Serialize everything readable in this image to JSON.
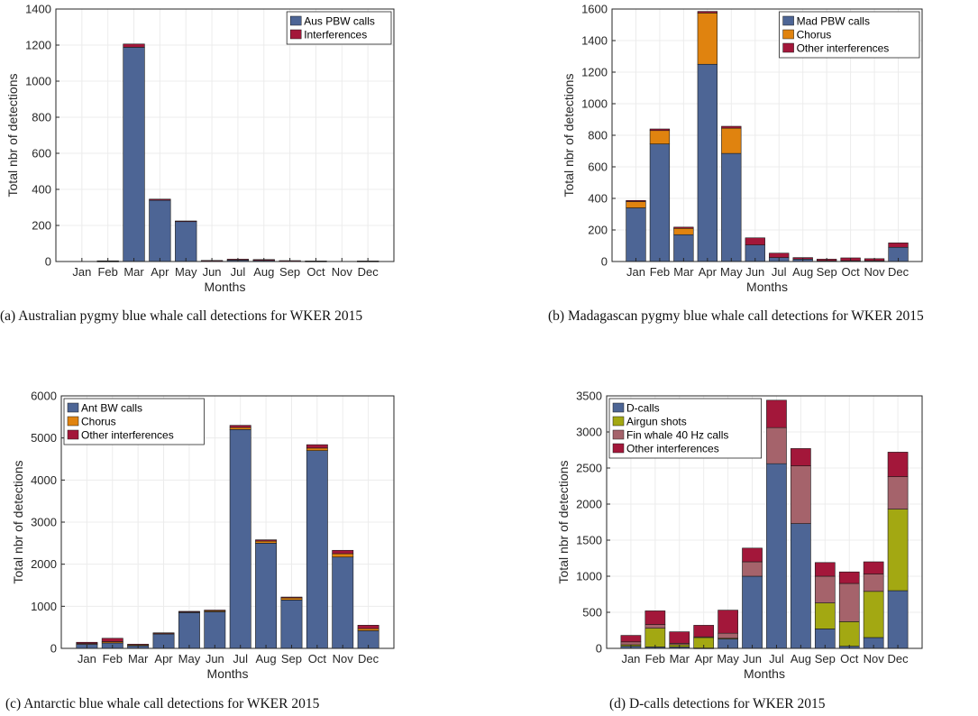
{
  "colors": {
    "blue": "#4d6595",
    "orange": "#e0830f",
    "red": "#a3173a",
    "olive": "#a3a812",
    "rose": "#a5636b"
  },
  "chart_data": [
    {
      "type": "bar",
      "stacked": true,
      "caption": "(a) Australian pygmy blue whale call detections for WKER 2015",
      "xlabel": "Months",
      "ylabel": "Total nbr of detections",
      "categories": [
        "Jan",
        "Feb",
        "Mar",
        "Apr",
        "May",
        "Jun",
        "Jul",
        "Aug",
        "Sep",
        "Oct",
        "Nov",
        "Dec"
      ],
      "ylim": [
        0,
        1400
      ],
      "yticks": [
        0,
        200,
        400,
        600,
        800,
        1000,
        1200,
        1400
      ],
      "ytick_labels": [
        "0",
        "200",
        "400",
        "600",
        "800",
        "1000",
        "1200",
        "1400"
      ],
      "grid": true,
      "legend_position": "top-right",
      "series": [
        {
          "name": "Aus PBW calls",
          "color": "#4d6595",
          "values": [
            0,
            2,
            1188,
            340,
            223,
            3,
            8,
            6,
            3,
            2,
            0,
            2
          ]
        },
        {
          "name": "Interferences",
          "color": "#a3173a",
          "values": [
            0,
            2,
            18,
            6,
            2,
            3,
            5,
            5,
            2,
            1,
            0,
            1
          ]
        }
      ]
    },
    {
      "type": "bar",
      "stacked": true,
      "caption": "(b) Madagascan pygmy blue whale call detections for WKER 2015",
      "xlabel": "Months",
      "ylabel": "Total nbr of detections",
      "categories": [
        "Jan",
        "Feb",
        "Mar",
        "Apr",
        "May",
        "Jun",
        "Jul",
        "Aug",
        "Sep",
        "Oct",
        "Nov",
        "Dec"
      ],
      "ylim": [
        0,
        1600
      ],
      "yticks": [
        0,
        200,
        400,
        600,
        800,
        1000,
        1200,
        1400,
        1600
      ],
      "ytick_labels": [
        "0",
        "200",
        "400",
        "600",
        "800",
        "1000",
        "1200",
        "1400",
        "1600"
      ],
      "grid": true,
      "legend_position": "top-right",
      "series": [
        {
          "name": "Mad PBW calls",
          "color": "#4d6595",
          "values": [
            340,
            745,
            170,
            1250,
            685,
            105,
            25,
            15,
            5,
            5,
            5,
            90
          ]
        },
        {
          "name": "Chorus",
          "color": "#e0830f",
          "values": [
            40,
            85,
            40,
            325,
            160,
            0,
            0,
            0,
            0,
            0,
            0,
            0
          ]
        },
        {
          "name": "Other interferences",
          "color": "#a3173a",
          "values": [
            7,
            10,
            8,
            10,
            12,
            45,
            28,
            10,
            10,
            18,
            13,
            28
          ]
        }
      ]
    },
    {
      "type": "bar",
      "stacked": true,
      "caption": "(c) Antarctic blue whale call detections for WKER 2015",
      "xlabel": "Months",
      "ylabel": "Total nbr of detections",
      "categories": [
        "Jan",
        "Feb",
        "Mar",
        "Apr",
        "May",
        "Jun",
        "Jul",
        "Aug",
        "Sep",
        "Oct",
        "Nov",
        "Dec"
      ],
      "ylim": [
        0,
        6000
      ],
      "yticks": [
        0,
        1000,
        2000,
        3000,
        4000,
        5000,
        6000
      ],
      "ytick_labels": [
        "0",
        "1000",
        "2000",
        "3000",
        "4000",
        "5000",
        "6000"
      ],
      "grid": true,
      "legend_position": "top-left",
      "series": [
        {
          "name": "Ant BW calls",
          "color": "#4d6595",
          "values": [
            100,
            130,
            60,
            340,
            850,
            870,
            5200,
            2500,
            1150,
            4700,
            2170,
            420
          ]
        },
        {
          "name": "Chorus",
          "color": "#e0830f",
          "values": [
            15,
            30,
            20,
            20,
            20,
            30,
            50,
            50,
            50,
            60,
            80,
            50
          ]
        },
        {
          "name": "Other interferences",
          "color": "#a3173a",
          "values": [
            30,
            80,
            20,
            10,
            10,
            10,
            50,
            30,
            20,
            80,
            80,
            80
          ]
        }
      ]
    },
    {
      "type": "bar",
      "stacked": true,
      "caption": "(d) D-calls detections for WKER 2015",
      "xlabel": "Months",
      "ylabel": "Total nbr of detections",
      "categories": [
        "Jan",
        "Feb",
        "Mar",
        "Apr",
        "May",
        "Jun",
        "Jul",
        "Aug",
        "Sep",
        "Oct",
        "Nov",
        "Dec"
      ],
      "ylim": [
        0,
        3500
      ],
      "yticks": [
        0,
        500,
        1000,
        1500,
        2000,
        2500,
        3000,
        3500
      ],
      "ytick_labels": [
        "0",
        "500",
        "1000",
        "1500",
        "2000",
        "2500",
        "3000",
        "3500"
      ],
      "grid": true,
      "legend_position": "top-left",
      "series": [
        {
          "name": "D-calls",
          "color": "#4d6595",
          "values": [
            30,
            20,
            20,
            5,
            130,
            1000,
            2560,
            1730,
            270,
            30,
            150,
            800
          ]
        },
        {
          "name": "Airgun shots",
          "color": "#a3a812",
          "values": [
            20,
            260,
            30,
            145,
            10,
            0,
            0,
            0,
            360,
            340,
            640,
            1130
          ]
        },
        {
          "name": "Fin whale 40 Hz calls",
          "color": "#a5636b",
          "values": [
            40,
            50,
            20,
            10,
            70,
            200,
            500,
            800,
            370,
            530,
            240,
            450
          ]
        },
        {
          "name": "Other interferences",
          "color": "#a3173a",
          "values": [
            90,
            190,
            160,
            160,
            320,
            190,
            380,
            240,
            190,
            160,
            170,
            340
          ]
        }
      ]
    }
  ]
}
